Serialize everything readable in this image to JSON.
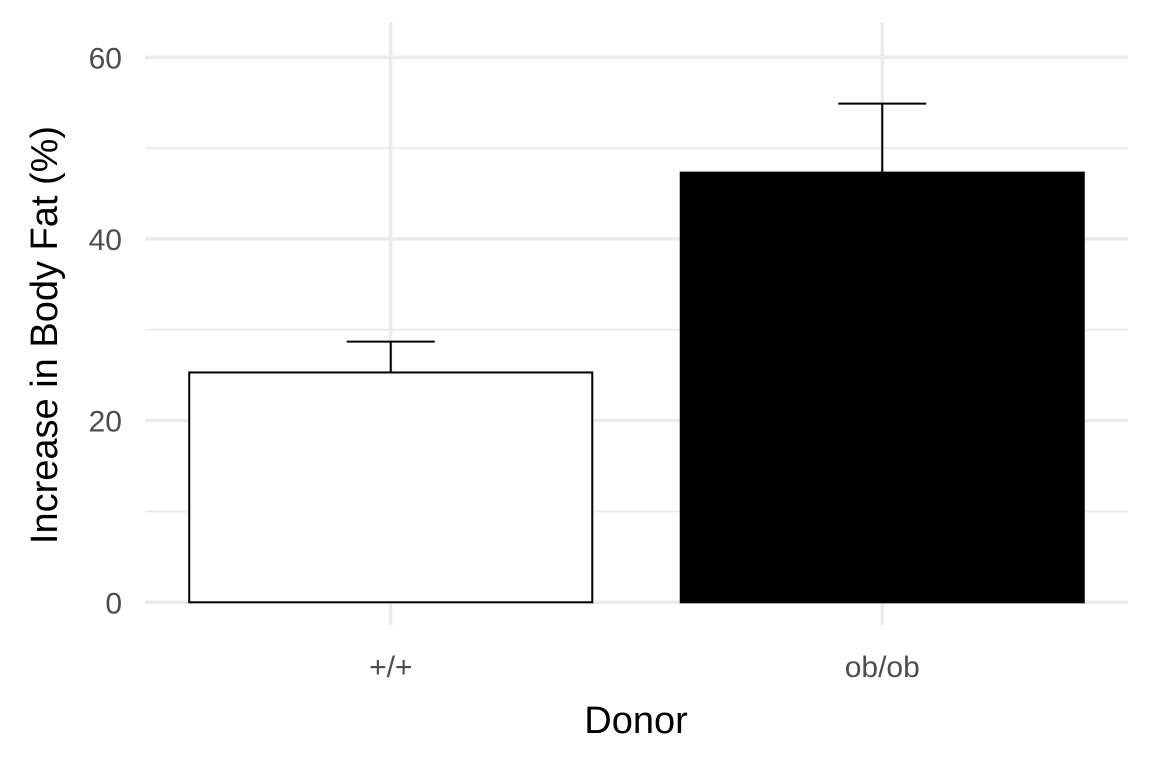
{
  "chart_data": {
    "type": "bar",
    "categories": [
      "+/+",
      "ob/ob"
    ],
    "values": [
      25.3,
      47.3
    ],
    "error_upper": [
      28.7,
      54.9
    ],
    "bar_fill": [
      "#ffffff",
      "#000000"
    ],
    "bar_stroke": "#000000",
    "xlabel": "Donor",
    "ylabel": "Increase in Body Fat (%)",
    "ylim": [
      -2.5,
      63
    ],
    "y_ticks": [
      0,
      20,
      40,
      60
    ],
    "y_minor_ticks": [
      10,
      30,
      50
    ],
    "grid": true,
    "grid_color": "#ebebeb",
    "tick_label_color": "#4d4d4d",
    "axis_title_color": "#000000"
  }
}
